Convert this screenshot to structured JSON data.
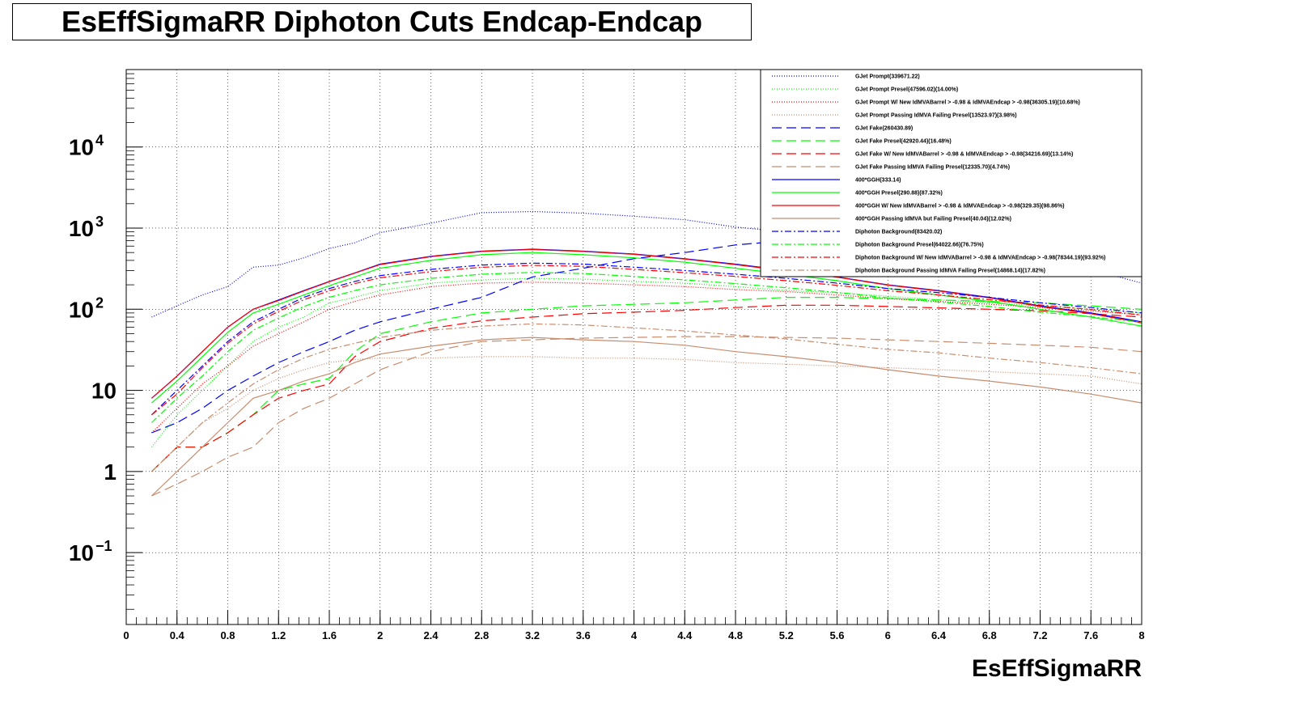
{
  "chart_data": {
    "type": "line",
    "title": "EsEffSigmaRR Diphoton Cuts Endcap-Endcap",
    "xlabel": "EsEffSigmaRR",
    "ylabel": "",
    "xlim": [
      0,
      8
    ],
    "ylim": [
      0.013,
      90000
    ],
    "log_y": true,
    "grid": true,
    "x_ticks": [
      "0",
      "0.4",
      "0.8",
      "1.2",
      "1.6",
      "2",
      "2.4",
      "2.8",
      "3.2",
      "3.6",
      "4",
      "4.4",
      "4.8",
      "5.2",
      "5.6",
      "6",
      "6.4",
      "6.8",
      "7.2",
      "7.6",
      "8"
    ],
    "y_ticks": [
      {
        "value": 0.1,
        "label": "10",
        "exp": "−1"
      },
      {
        "value": 1,
        "label": "1",
        "exp": ""
      },
      {
        "value": 10,
        "label": "10",
        "exp": ""
      },
      {
        "value": 100,
        "label": "10",
        "exp": "2"
      },
      {
        "value": 1000,
        "label": "10",
        "exp": "3"
      },
      {
        "value": 10000,
        "label": "10",
        "exp": "4"
      }
    ],
    "legend_position": "top-right",
    "x": [
      0.2,
      0.4,
      0.6,
      0.8,
      1.0,
      1.2,
      1.4,
      1.6,
      1.8,
      2.0,
      2.4,
      2.8,
      3.2,
      3.6,
      4.0,
      4.4,
      4.8,
      5.2,
      5.6,
      6.0,
      6.4,
      6.8,
      7.2,
      7.6,
      8.0
    ],
    "series": [
      {
        "name": "GJet Prompt(339671.22)",
        "color": "#0000ff",
        "dash": "1,2",
        "values": [
          80,
          110,
          150,
          190,
          330,
          350,
          430,
          560,
          660,
          880,
          1150,
          1550,
          1600,
          1530,
          1400,
          1270,
          1030,
          900,
          760,
          620,
          520,
          430,
          350,
          310,
          210
        ]
      },
      {
        "name": "GJet Prompt Presel(47596.02)(14.00%)",
        "color": "#00ff00",
        "dash": "1,2",
        "values": [
          2,
          5,
          10,
          20,
          40,
          60,
          80,
          120,
          140,
          170,
          210,
          230,
          240,
          235,
          220,
          210,
          190,
          170,
          160,
          145,
          130,
          120,
          110,
          100,
          90
        ]
      },
      {
        "name": "GJet Prompt W/ New IdMVABarrel > -0.98 & IdMVAEndcap > -0.98(36305.19)(10.68%)",
        "color": "#ff0000",
        "dash": "1,2",
        "values": [
          3,
          6,
          12,
          20,
          35,
          50,
          70,
          100,
          125,
          150,
          190,
          210,
          215,
          210,
          200,
          190,
          175,
          165,
          150,
          135,
          125,
          115,
          105,
          95,
          85
        ]
      },
      {
        "name": "GJet Prompt Passing IdMVA Failing Presel(13523.97)(3.98%)",
        "color": "#c88c6e",
        "dash": "1,2",
        "values": [
          1,
          2,
          4,
          6,
          10,
          14,
          18,
          22,
          24,
          25,
          25,
          26,
          26,
          25,
          25,
          24,
          22,
          21,
          20,
          19,
          18,
          17,
          16,
          15,
          12
        ]
      },
      {
        "name": "GJet Fake(260430.89)",
        "color": "#0000ff",
        "dash": "12,6",
        "values": [
          3,
          4,
          6,
          10,
          15,
          22,
          30,
          40,
          55,
          70,
          100,
          140,
          250,
          320,
          420,
          500,
          620,
          700,
          720,
          700,
          650,
          600,
          500,
          400,
          280
        ]
      },
      {
        "name": "GJet Fake Presel(42920.44)(16.48%)",
        "color": "#00ff00",
        "dash": "12,6",
        "values": [
          1,
          2,
          2,
          3,
          5,
          10,
          12,
          14,
          30,
          50,
          70,
          90,
          100,
          110,
          115,
          120,
          130,
          140,
          140,
          135,
          130,
          125,
          120,
          110,
          100
        ]
      },
      {
        "name": "GJet Fake W/ New IdMVABarrel > -0.98 & IdMVAEndcap > -0.98(34216.69)(13.14%)",
        "color": "#ff0000",
        "dash": "12,6",
        "values": [
          1,
          2,
          2,
          3,
          5,
          8,
          10,
          12,
          26,
          40,
          58,
          72,
          80,
          88,
          92,
          97,
          105,
          112,
          112,
          108,
          104,
          100,
          96,
          88,
          80
        ]
      },
      {
        "name": "GJet Fake Passing IdMVA Failing Presel(12335.70)(4.74%)",
        "color": "#c88c6e",
        "dash": "12,6",
        "values": [
          0.5,
          0.7,
          1,
          1.5,
          2,
          4,
          6,
          8,
          12,
          18,
          30,
          40,
          42,
          44,
          45,
          46,
          46,
          45,
          44,
          42,
          40,
          38,
          36,
          34,
          30
        ]
      },
      {
        "name": "400*GGH(333.14)",
        "color": "#0000ff",
        "dash": "",
        "values": [
          8,
          15,
          30,
          60,
          100,
          130,
          170,
          220,
          280,
          360,
          450,
          520,
          550,
          520,
          480,
          420,
          360,
          300,
          250,
          200,
          170,
          140,
          110,
          90,
          70
        ]
      },
      {
        "name": "400*GGH Presel(290.88)(87.32%)",
        "color": "#00ff00",
        "dash": "",
        "values": [
          7,
          13,
          26,
          52,
          90,
          115,
          150,
          195,
          250,
          320,
          400,
          470,
          500,
          470,
          430,
          380,
          320,
          270,
          225,
          180,
          150,
          125,
          100,
          80,
          62
        ]
      },
      {
        "name": "400*GGH W/ New IdMVABarrel > -0.98 & IdMVAEndcap > -0.98(329.35)(98.86%)",
        "color": "#ff0000",
        "dash": "",
        "values": [
          8,
          15,
          30,
          60,
          100,
          128,
          168,
          218,
          278,
          355,
          445,
          515,
          545,
          515,
          475,
          415,
          355,
          297,
          248,
          198,
          168,
          138,
          108,
          88,
          68
        ]
      },
      {
        "name": "400*GGH Passing IdMVA but Failing Presel(40.04)(12.02%)",
        "color": "#c88c6e",
        "dash": "",
        "values": [
          0.5,
          1,
          2,
          4,
          8,
          10,
          13,
          16,
          22,
          28,
          35,
          42,
          45,
          42,
          40,
          36,
          30,
          26,
          22,
          18,
          15,
          13,
          11,
          9,
          7
        ]
      },
      {
        "name": "Diphoton Background(83420.02)",
        "color": "#0000ff",
        "dash": "8,3,2,3",
        "values": [
          5,
          10,
          20,
          40,
          70,
          100,
          140,
          180,
          220,
          260,
          310,
          350,
          370,
          360,
          330,
          300,
          270,
          240,
          210,
          180,
          160,
          140,
          120,
          105,
          90
        ]
      },
      {
        "name": "Diphoton Background Presel(64022.66)(76.75%)",
        "color": "#00ff00",
        "dash": "8,3,2,3",
        "values": [
          4,
          8,
          15,
          30,
          55,
          78,
          108,
          140,
          170,
          200,
          240,
          270,
          285,
          276,
          254,
          230,
          207,
          184,
          161,
          138,
          123,
          108,
          92,
          81,
          69
        ]
      },
      {
        "name": "Diphoton Background W/ New IdMVABarrel > -0.98 & IdMVAEndcap > -0.98(78344.19)(93.92%)",
        "color": "#ff0000",
        "dash": "8,3,2,3",
        "values": [
          5,
          9,
          19,
          38,
          66,
          94,
          131,
          169,
          207,
          244,
          291,
          329,
          348,
          338,
          310,
          282,
          254,
          225,
          197,
          169,
          150,
          131,
          113,
          99,
          85
        ]
      },
      {
        "name": "Diphoton Background Passing IdMVA Failing Presel(14868.14)(17.82%)",
        "color": "#c88c6e",
        "dash": "8,3,2,3",
        "values": [
          1,
          2,
          4,
          7,
          12,
          18,
          25,
          32,
          38,
          45,
          55,
          62,
          66,
          64,
          59,
          54,
          48,
          43,
          37,
          32,
          29,
          25,
          22,
          19,
          16
        ]
      }
    ]
  }
}
